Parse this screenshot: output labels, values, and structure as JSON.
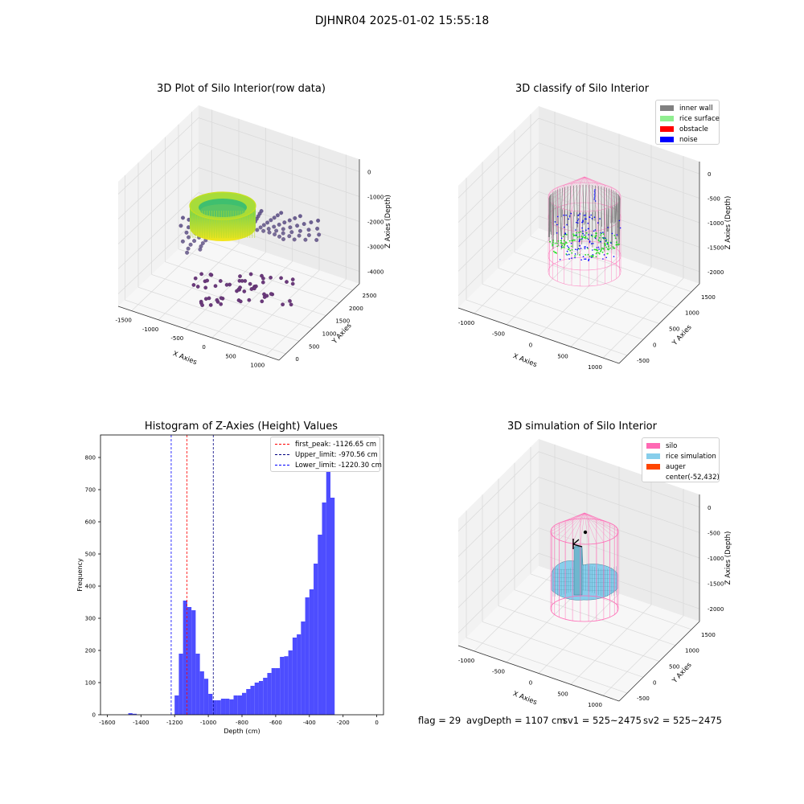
{
  "figure": {
    "suptitle": "DJHNR04 2025-01-02 15:55:18",
    "footer": {
      "flag": "flag = 29",
      "avg_depth": "avgDepth = 1107 cm",
      "sv1": "sv1 = 525~2475",
      "sv2": "sv2 = 525~2475"
    }
  },
  "colors": {
    "inner_wall": "#808080",
    "rice_surface": "#90ee90",
    "obstacle": "#ff0000",
    "noise": "#0000ff",
    "silo": "#ff69b4",
    "rice_simulation": "#87ceeb",
    "auger": "#ff4500",
    "histogram_bar": "#4d4dff",
    "first_peak_line": "#ff0000",
    "upper_line": "#000080",
    "lower_line": "#0000ff"
  },
  "chart_data": [
    {
      "id": "raw",
      "type": "scatter",
      "title": "3D Plot of Silo Interior(row data)",
      "xlabel": "X Axies",
      "ylabel": "Y Axies",
      "zlabel": "Z Axies (Depth)",
      "x_ticks": [
        "-1500",
        "-1000",
        "-500",
        "0",
        "500",
        "1000"
      ],
      "y_ticks": [
        "0",
        "500",
        "1000",
        "1500",
        "2000",
        "2500"
      ],
      "z_ticks": [
        "0",
        "-1000",
        "-2000",
        "-3000",
        "-4000"
      ]
    },
    {
      "id": "classify",
      "type": "scatter",
      "title": "3D classify of Silo Interior",
      "xlabel": "X Axies",
      "ylabel": "Y Axies",
      "zlabel": "Z Axies (Depth)",
      "x_ticks": [
        "-1000",
        "-500",
        "0",
        "500",
        "1000"
      ],
      "y_ticks": [
        "-500",
        "0",
        "500",
        "1000",
        "1500"
      ],
      "z_ticks": [
        "0",
        "-500",
        "-1000",
        "-1500",
        "-2000"
      ],
      "legend": [
        "inner wall",
        "rice surface",
        "obstacle",
        "noise"
      ],
      "legend_position": "upper-right"
    },
    {
      "id": "histogram",
      "type": "bar",
      "title": "Histogram of Z-Axies (Height) Values",
      "xlabel": "Depth (cm)",
      "ylabel": "Frequency",
      "xlim": [
        -1640,
        40
      ],
      "ylim": [
        0,
        870
      ],
      "x_ticks": [
        -1600,
        -1400,
        -1200,
        -1000,
        -800,
        -600,
        -400,
        -200,
        0
      ],
      "y_ticks": [
        0,
        100,
        200,
        300,
        400,
        500,
        600,
        700,
        800
      ],
      "bin_width": 25,
      "bins": [
        {
          "x0": -1475,
          "count": 5
        },
        {
          "x0": -1450,
          "count": 3
        },
        {
          "x0": -1200,
          "count": 60
        },
        {
          "x0": -1175,
          "count": 190
        },
        {
          "x0": -1150,
          "count": 355
        },
        {
          "x0": -1125,
          "count": 335
        },
        {
          "x0": -1100,
          "count": 325
        },
        {
          "x0": -1075,
          "count": 190
        },
        {
          "x0": -1050,
          "count": 135
        },
        {
          "x0": -1025,
          "count": 112
        },
        {
          "x0": -1000,
          "count": 65
        },
        {
          "x0": -975,
          "count": 45
        },
        {
          "x0": -950,
          "count": 45
        },
        {
          "x0": -925,
          "count": 50
        },
        {
          "x0": -900,
          "count": 50
        },
        {
          "x0": -875,
          "count": 48
        },
        {
          "x0": -850,
          "count": 60
        },
        {
          "x0": -825,
          "count": 60
        },
        {
          "x0": -800,
          "count": 68
        },
        {
          "x0": -775,
          "count": 80
        },
        {
          "x0": -750,
          "count": 90
        },
        {
          "x0": -725,
          "count": 100
        },
        {
          "x0": -700,
          "count": 105
        },
        {
          "x0": -675,
          "count": 115
        },
        {
          "x0": -650,
          "count": 130
        },
        {
          "x0": -625,
          "count": 145
        },
        {
          "x0": -600,
          "count": 145
        },
        {
          "x0": -575,
          "count": 180
        },
        {
          "x0": -550,
          "count": 182
        },
        {
          "x0": -525,
          "count": 200
        },
        {
          "x0": -500,
          "count": 240
        },
        {
          "x0": -475,
          "count": 250
        },
        {
          "x0": -450,
          "count": 290
        },
        {
          "x0": -425,
          "count": 365
        },
        {
          "x0": -400,
          "count": 390
        },
        {
          "x0": -375,
          "count": 470
        },
        {
          "x0": -350,
          "count": 560
        },
        {
          "x0": -325,
          "count": 660
        },
        {
          "x0": -300,
          "count": 830
        },
        {
          "x0": -275,
          "count": 675
        }
      ],
      "vlines": [
        {
          "label": "first_peak: -1126.65 cm",
          "x": -1126.65,
          "color": "#ff0000"
        },
        {
          "label": "Upper_limit: -970.56 cm",
          "x": -970.56,
          "color": "#000080"
        },
        {
          "label": "Lower_limit: -1220.30 cm",
          "x": -1220.3,
          "color": "#0000ff"
        }
      ],
      "legend_position": "upper-right"
    },
    {
      "id": "simulation",
      "type": "scatter",
      "title": "3D simulation of Silo Interior",
      "xlabel": "X Axies",
      "ylabel": "Y Axies",
      "zlabel": "Z Axies (Depth)",
      "x_ticks": [
        "-1000",
        "-500",
        "0",
        "500",
        "1000"
      ],
      "y_ticks": [
        "-500",
        "0",
        "500",
        "1000",
        "1500"
      ],
      "z_ticks": [
        "0",
        "-500",
        "-1000",
        "-1500",
        "-2000"
      ],
      "legend": [
        "silo",
        "rice simulation",
        "auger",
        "center(-52,432)"
      ],
      "legend_position": "upper-right"
    }
  ]
}
